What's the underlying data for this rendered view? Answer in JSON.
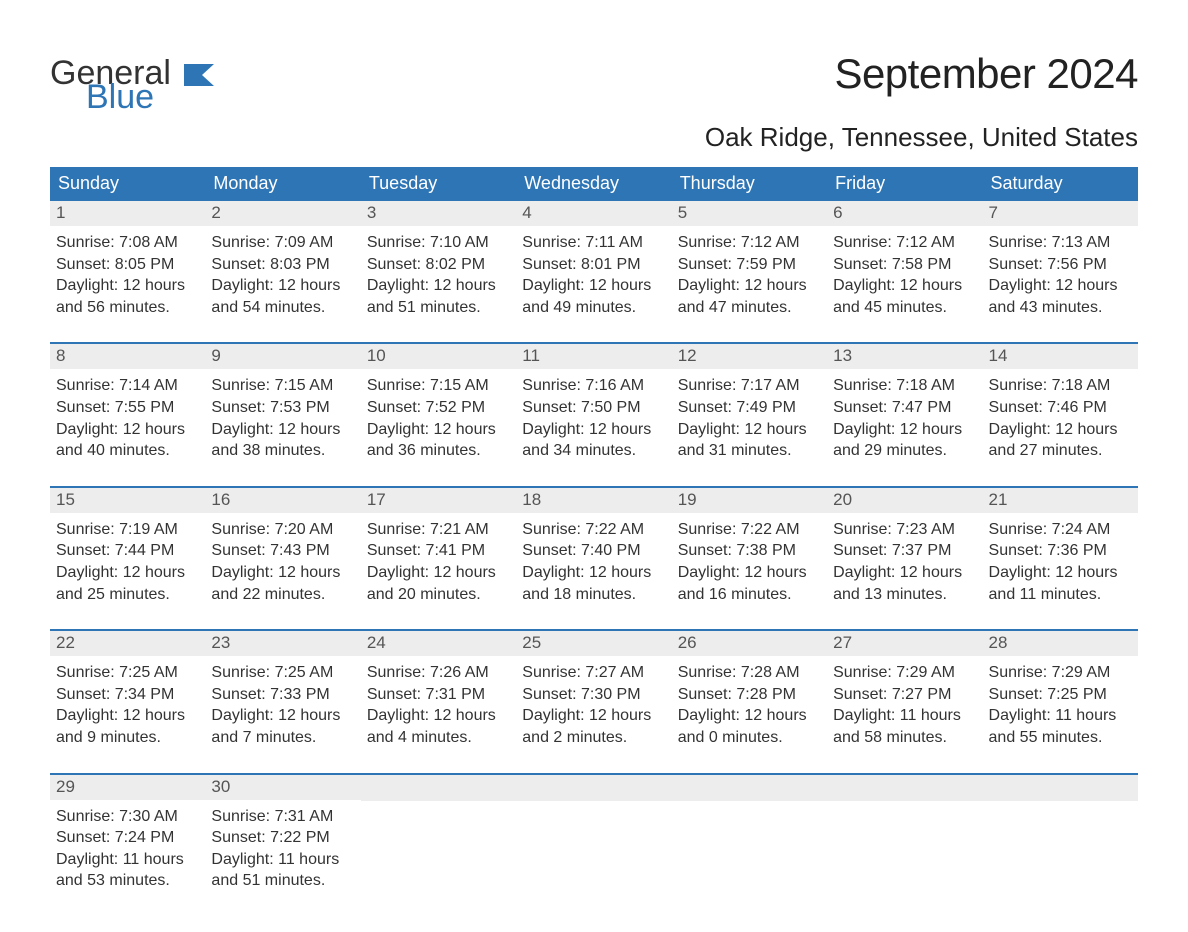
{
  "logo": {
    "text1": "General",
    "text2": "Blue",
    "accent_color": "#2e75b6"
  },
  "title": "September 2024",
  "location": "Oak Ridge, Tennessee, United States",
  "colors": {
    "header_bg": "#2e75b6",
    "header_text": "#ffffff",
    "daynum_bg": "#ededed",
    "daynum_text": "#555555",
    "body_text": "#333333",
    "week_divider": "#2e75b6",
    "page_bg": "#ffffff"
  },
  "typography": {
    "title_fontsize": 42,
    "location_fontsize": 26,
    "dayheader_fontsize": 18,
    "daynum_fontsize": 17,
    "body_fontsize": 16,
    "font_family": "Arial"
  },
  "day_headers": [
    "Sunday",
    "Monday",
    "Tuesday",
    "Wednesday",
    "Thursday",
    "Friday",
    "Saturday"
  ],
  "labels": {
    "sunrise": "Sunrise:",
    "sunset": "Sunset:",
    "daylight": "Daylight:"
  },
  "weeks": [
    [
      {
        "num": "1",
        "sunrise": "7:08 AM",
        "sunset": "8:05 PM",
        "daylight_l1": "12 hours",
        "daylight_l2": "and 56 minutes."
      },
      {
        "num": "2",
        "sunrise": "7:09 AM",
        "sunset": "8:03 PM",
        "daylight_l1": "12 hours",
        "daylight_l2": "and 54 minutes."
      },
      {
        "num": "3",
        "sunrise": "7:10 AM",
        "sunset": "8:02 PM",
        "daylight_l1": "12 hours",
        "daylight_l2": "and 51 minutes."
      },
      {
        "num": "4",
        "sunrise": "7:11 AM",
        "sunset": "8:01 PM",
        "daylight_l1": "12 hours",
        "daylight_l2": "and 49 minutes."
      },
      {
        "num": "5",
        "sunrise": "7:12 AM",
        "sunset": "7:59 PM",
        "daylight_l1": "12 hours",
        "daylight_l2": "and 47 minutes."
      },
      {
        "num": "6",
        "sunrise": "7:12 AM",
        "sunset": "7:58 PM",
        "daylight_l1": "12 hours",
        "daylight_l2": "and 45 minutes."
      },
      {
        "num": "7",
        "sunrise": "7:13 AM",
        "sunset": "7:56 PM",
        "daylight_l1": "12 hours",
        "daylight_l2": "and 43 minutes."
      }
    ],
    [
      {
        "num": "8",
        "sunrise": "7:14 AM",
        "sunset": "7:55 PM",
        "daylight_l1": "12 hours",
        "daylight_l2": "and 40 minutes."
      },
      {
        "num": "9",
        "sunrise": "7:15 AM",
        "sunset": "7:53 PM",
        "daylight_l1": "12 hours",
        "daylight_l2": "and 38 minutes."
      },
      {
        "num": "10",
        "sunrise": "7:15 AM",
        "sunset": "7:52 PM",
        "daylight_l1": "12 hours",
        "daylight_l2": "and 36 minutes."
      },
      {
        "num": "11",
        "sunrise": "7:16 AM",
        "sunset": "7:50 PM",
        "daylight_l1": "12 hours",
        "daylight_l2": "and 34 minutes."
      },
      {
        "num": "12",
        "sunrise": "7:17 AM",
        "sunset": "7:49 PM",
        "daylight_l1": "12 hours",
        "daylight_l2": "and 31 minutes."
      },
      {
        "num": "13",
        "sunrise": "7:18 AM",
        "sunset": "7:47 PM",
        "daylight_l1": "12 hours",
        "daylight_l2": "and 29 minutes."
      },
      {
        "num": "14",
        "sunrise": "7:18 AM",
        "sunset": "7:46 PM",
        "daylight_l1": "12 hours",
        "daylight_l2": "and 27 minutes."
      }
    ],
    [
      {
        "num": "15",
        "sunrise": "7:19 AM",
        "sunset": "7:44 PM",
        "daylight_l1": "12 hours",
        "daylight_l2": "and 25 minutes."
      },
      {
        "num": "16",
        "sunrise": "7:20 AM",
        "sunset": "7:43 PM",
        "daylight_l1": "12 hours",
        "daylight_l2": "and 22 minutes."
      },
      {
        "num": "17",
        "sunrise": "7:21 AM",
        "sunset": "7:41 PM",
        "daylight_l1": "12 hours",
        "daylight_l2": "and 20 minutes."
      },
      {
        "num": "18",
        "sunrise": "7:22 AM",
        "sunset": "7:40 PM",
        "daylight_l1": "12 hours",
        "daylight_l2": "and 18 minutes."
      },
      {
        "num": "19",
        "sunrise": "7:22 AM",
        "sunset": "7:38 PM",
        "daylight_l1": "12 hours",
        "daylight_l2": "and 16 minutes."
      },
      {
        "num": "20",
        "sunrise": "7:23 AM",
        "sunset": "7:37 PM",
        "daylight_l1": "12 hours",
        "daylight_l2": "and 13 minutes."
      },
      {
        "num": "21",
        "sunrise": "7:24 AM",
        "sunset": "7:36 PM",
        "daylight_l1": "12 hours",
        "daylight_l2": "and 11 minutes."
      }
    ],
    [
      {
        "num": "22",
        "sunrise": "7:25 AM",
        "sunset": "7:34 PM",
        "daylight_l1": "12 hours",
        "daylight_l2": "and 9 minutes."
      },
      {
        "num": "23",
        "sunrise": "7:25 AM",
        "sunset": "7:33 PM",
        "daylight_l1": "12 hours",
        "daylight_l2": "and 7 minutes."
      },
      {
        "num": "24",
        "sunrise": "7:26 AM",
        "sunset": "7:31 PM",
        "daylight_l1": "12 hours",
        "daylight_l2": "and 4 minutes."
      },
      {
        "num": "25",
        "sunrise": "7:27 AM",
        "sunset": "7:30 PM",
        "daylight_l1": "12 hours",
        "daylight_l2": "and 2 minutes."
      },
      {
        "num": "26",
        "sunrise": "7:28 AM",
        "sunset": "7:28 PM",
        "daylight_l1": "12 hours",
        "daylight_l2": "and 0 minutes."
      },
      {
        "num": "27",
        "sunrise": "7:29 AM",
        "sunset": "7:27 PM",
        "daylight_l1": "11 hours",
        "daylight_l2": "and 58 minutes."
      },
      {
        "num": "28",
        "sunrise": "7:29 AM",
        "sunset": "7:25 PM",
        "daylight_l1": "11 hours",
        "daylight_l2": "and 55 minutes."
      }
    ],
    [
      {
        "num": "29",
        "sunrise": "7:30 AM",
        "sunset": "7:24 PM",
        "daylight_l1": "11 hours",
        "daylight_l2": "and 53 minutes."
      },
      {
        "num": "30",
        "sunrise": "7:31 AM",
        "sunset": "7:22 PM",
        "daylight_l1": "11 hours",
        "daylight_l2": "and 51 minutes."
      },
      {
        "empty": true
      },
      {
        "empty": true
      },
      {
        "empty": true
      },
      {
        "empty": true
      },
      {
        "empty": true
      }
    ]
  ]
}
